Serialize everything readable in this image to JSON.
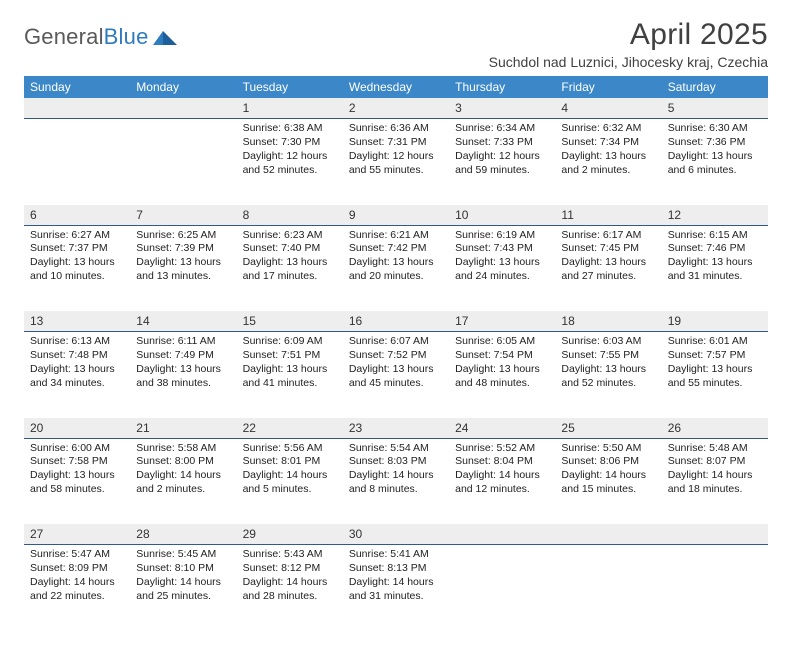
{
  "logo": {
    "word1": "General",
    "word2": "Blue"
  },
  "title": "April 2025",
  "subtitle": "Suchdol nad Luznici, Jihocesky kraj, Czechia",
  "colors": {
    "header_bg": "#3b87c8",
    "header_fg": "#ffffff",
    "daynum_bg": "#eeeeee",
    "rule": "#2f5b85",
    "logo_gray": "#5a5a5a",
    "logo_blue": "#2f7bbf",
    "title_color": "#404040"
  },
  "daysOfWeek": [
    "Sunday",
    "Monday",
    "Tuesday",
    "Wednesday",
    "Thursday",
    "Friday",
    "Saturday"
  ],
  "weeks": [
    [
      null,
      null,
      {
        "n": "1",
        "sr": "Sunrise: 6:38 AM",
        "ss": "Sunset: 7:30 PM",
        "dl": "Daylight: 12 hours and 52 minutes."
      },
      {
        "n": "2",
        "sr": "Sunrise: 6:36 AM",
        "ss": "Sunset: 7:31 PM",
        "dl": "Daylight: 12 hours and 55 minutes."
      },
      {
        "n": "3",
        "sr": "Sunrise: 6:34 AM",
        "ss": "Sunset: 7:33 PM",
        "dl": "Daylight: 12 hours and 59 minutes."
      },
      {
        "n": "4",
        "sr": "Sunrise: 6:32 AM",
        "ss": "Sunset: 7:34 PM",
        "dl": "Daylight: 13 hours and 2 minutes."
      },
      {
        "n": "5",
        "sr": "Sunrise: 6:30 AM",
        "ss": "Sunset: 7:36 PM",
        "dl": "Daylight: 13 hours and 6 minutes."
      }
    ],
    [
      {
        "n": "6",
        "sr": "Sunrise: 6:27 AM",
        "ss": "Sunset: 7:37 PM",
        "dl": "Daylight: 13 hours and 10 minutes."
      },
      {
        "n": "7",
        "sr": "Sunrise: 6:25 AM",
        "ss": "Sunset: 7:39 PM",
        "dl": "Daylight: 13 hours and 13 minutes."
      },
      {
        "n": "8",
        "sr": "Sunrise: 6:23 AM",
        "ss": "Sunset: 7:40 PM",
        "dl": "Daylight: 13 hours and 17 minutes."
      },
      {
        "n": "9",
        "sr": "Sunrise: 6:21 AM",
        "ss": "Sunset: 7:42 PM",
        "dl": "Daylight: 13 hours and 20 minutes."
      },
      {
        "n": "10",
        "sr": "Sunrise: 6:19 AM",
        "ss": "Sunset: 7:43 PM",
        "dl": "Daylight: 13 hours and 24 minutes."
      },
      {
        "n": "11",
        "sr": "Sunrise: 6:17 AM",
        "ss": "Sunset: 7:45 PM",
        "dl": "Daylight: 13 hours and 27 minutes."
      },
      {
        "n": "12",
        "sr": "Sunrise: 6:15 AM",
        "ss": "Sunset: 7:46 PM",
        "dl": "Daylight: 13 hours and 31 minutes."
      }
    ],
    [
      {
        "n": "13",
        "sr": "Sunrise: 6:13 AM",
        "ss": "Sunset: 7:48 PM",
        "dl": "Daylight: 13 hours and 34 minutes."
      },
      {
        "n": "14",
        "sr": "Sunrise: 6:11 AM",
        "ss": "Sunset: 7:49 PM",
        "dl": "Daylight: 13 hours and 38 minutes."
      },
      {
        "n": "15",
        "sr": "Sunrise: 6:09 AM",
        "ss": "Sunset: 7:51 PM",
        "dl": "Daylight: 13 hours and 41 minutes."
      },
      {
        "n": "16",
        "sr": "Sunrise: 6:07 AM",
        "ss": "Sunset: 7:52 PM",
        "dl": "Daylight: 13 hours and 45 minutes."
      },
      {
        "n": "17",
        "sr": "Sunrise: 6:05 AM",
        "ss": "Sunset: 7:54 PM",
        "dl": "Daylight: 13 hours and 48 minutes."
      },
      {
        "n": "18",
        "sr": "Sunrise: 6:03 AM",
        "ss": "Sunset: 7:55 PM",
        "dl": "Daylight: 13 hours and 52 minutes."
      },
      {
        "n": "19",
        "sr": "Sunrise: 6:01 AM",
        "ss": "Sunset: 7:57 PM",
        "dl": "Daylight: 13 hours and 55 minutes."
      }
    ],
    [
      {
        "n": "20",
        "sr": "Sunrise: 6:00 AM",
        "ss": "Sunset: 7:58 PM",
        "dl": "Daylight: 13 hours and 58 minutes."
      },
      {
        "n": "21",
        "sr": "Sunrise: 5:58 AM",
        "ss": "Sunset: 8:00 PM",
        "dl": "Daylight: 14 hours and 2 minutes."
      },
      {
        "n": "22",
        "sr": "Sunrise: 5:56 AM",
        "ss": "Sunset: 8:01 PM",
        "dl": "Daylight: 14 hours and 5 minutes."
      },
      {
        "n": "23",
        "sr": "Sunrise: 5:54 AM",
        "ss": "Sunset: 8:03 PM",
        "dl": "Daylight: 14 hours and 8 minutes."
      },
      {
        "n": "24",
        "sr": "Sunrise: 5:52 AM",
        "ss": "Sunset: 8:04 PM",
        "dl": "Daylight: 14 hours and 12 minutes."
      },
      {
        "n": "25",
        "sr": "Sunrise: 5:50 AM",
        "ss": "Sunset: 8:06 PM",
        "dl": "Daylight: 14 hours and 15 minutes."
      },
      {
        "n": "26",
        "sr": "Sunrise: 5:48 AM",
        "ss": "Sunset: 8:07 PM",
        "dl": "Daylight: 14 hours and 18 minutes."
      }
    ],
    [
      {
        "n": "27",
        "sr": "Sunrise: 5:47 AM",
        "ss": "Sunset: 8:09 PM",
        "dl": "Daylight: 14 hours and 22 minutes."
      },
      {
        "n": "28",
        "sr": "Sunrise: 5:45 AM",
        "ss": "Sunset: 8:10 PM",
        "dl": "Daylight: 14 hours and 25 minutes."
      },
      {
        "n": "29",
        "sr": "Sunrise: 5:43 AM",
        "ss": "Sunset: 8:12 PM",
        "dl": "Daylight: 14 hours and 28 minutes."
      },
      {
        "n": "30",
        "sr": "Sunrise: 5:41 AM",
        "ss": "Sunset: 8:13 PM",
        "dl": "Daylight: 14 hours and 31 minutes."
      },
      null,
      null,
      null
    ]
  ]
}
